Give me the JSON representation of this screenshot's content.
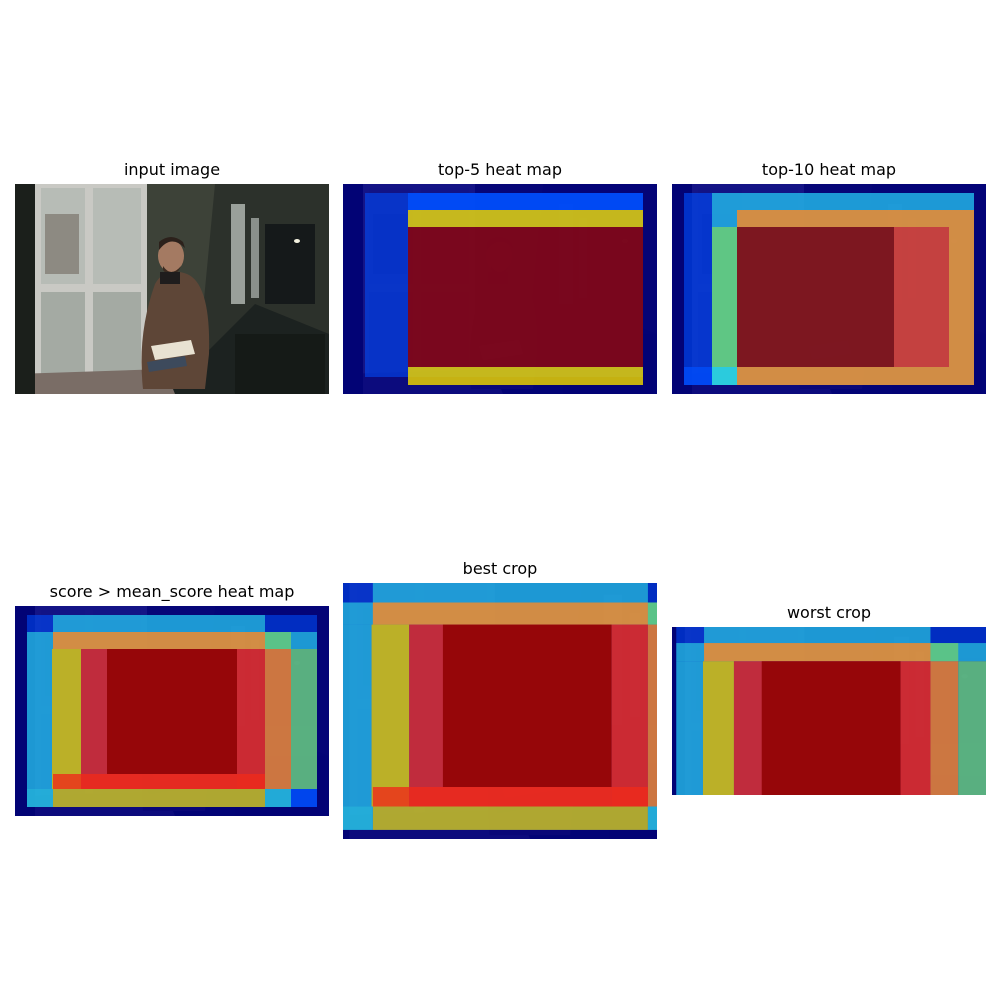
{
  "figure": {
    "panels": [
      {
        "id": "input",
        "title": "input image"
      },
      {
        "id": "top5",
        "title": "top-5 heat map"
      },
      {
        "id": "top10",
        "title": "top-10 heat map"
      },
      {
        "id": "mean",
        "title": "score > mean_score heat map"
      },
      {
        "id": "best",
        "title": "best crop"
      },
      {
        "id": "worst",
        "title": "worst crop"
      }
    ]
  },
  "scene": {
    "subject": "man-reading-by-window-in-corridor",
    "colors": {
      "wall": "#3d4238",
      "floor": "#1c2220",
      "window_frame": "#c9c9c4",
      "window_glass": "#b7bcb6",
      "coat": "#5e4637",
      "book": "#e8e2d2"
    }
  },
  "heatmap": {
    "colormap": "jet",
    "colors": {
      "navy": "#00007f",
      "blue": "#0050ff",
      "cyan": "#30e0e0",
      "green": "#6fd16f",
      "yellow": "#e8d000",
      "orange": "#ff8a20",
      "red": "#ef2a1a",
      "darkred": "#8e0000"
    }
  }
}
